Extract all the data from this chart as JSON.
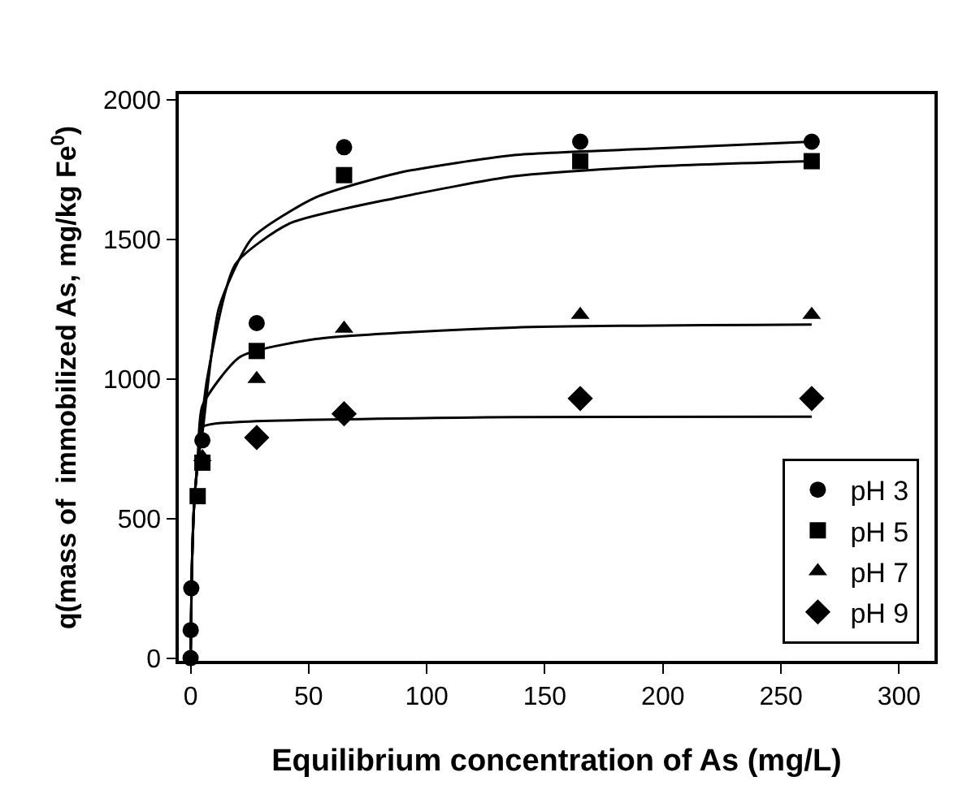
{
  "chart_data": {
    "type": "scatter",
    "xlabel": "Equilibrium concentration of As (mg/L)",
    "ylabel": "q(mass of  immobilized As, mg/kg Fe$^{0}$)",
    "xlim": [
      -5,
      315
    ],
    "ylim": [
      -10,
      2020
    ],
    "xticks": [
      0,
      50,
      100,
      150,
      200,
      250,
      300
    ],
    "yticks": [
      0,
      500,
      1000,
      1500,
      2000
    ],
    "grid": false,
    "legend": "bottom right",
    "series": [
      {
        "type": "line",
        "marker": "none",
        "line_style": "solid",
        "color": "#000000",
        "x": [
          0,
          0.5,
          1.5,
          3,
          5,
          12,
          26,
          53,
          88,
          137,
          196,
          263
        ],
        "values": [
          0,
          300,
          550,
          700,
          805,
          1254,
          1504,
          1650,
          1738,
          1802,
          1825,
          1850
        ]
      },
      {
        "type": "line",
        "marker": "none",
        "line_style": "solid",
        "color": "#000000",
        "x": [
          0,
          0.5,
          1.5,
          3,
          7,
          19,
          42,
          88,
          137,
          196,
          263
        ],
        "values": [
          0,
          300,
          550,
          700,
          1000,
          1411,
          1557,
          1650,
          1726,
          1761,
          1780
        ]
      },
      {
        "type": "line",
        "marker": "none",
        "line_style": "solid",
        "color": "#000000",
        "x": [
          0,
          0.5,
          1.5,
          3,
          5,
          21,
          53,
          137,
          263
        ],
        "values": [
          0,
          300,
          550,
          700,
          904,
          1079,
          1143,
          1184,
          1195
        ]
      },
      {
        "type": "line",
        "marker": "none",
        "line_style": "solid",
        "color": "#000000",
        "x": [
          0,
          0.5,
          1.5,
          3,
          5,
          19,
          137,
          263
        ],
        "values": [
          0,
          300,
          550,
          700,
          828,
          845,
          863,
          865
        ]
      },
      {
        "name": "pH 3",
        "marker": "circle",
        "color": "#000000",
        "x": [
          0,
          0.05,
          0.3,
          1,
          3,
          5,
          28,
          65,
          165,
          263
        ],
        "values": [
          0,
          100,
          250,
          null,
          null,
          780,
          1200,
          1830,
          1850,
          1850
        ]
      },
      {
        "name": "pH 5",
        "marker": "square",
        "color": "#000000",
        "x": [
          3,
          5,
          28,
          65,
          165,
          263
        ],
        "values": [
          580,
          700,
          1100,
          1730,
          1780,
          1780
        ]
      },
      {
        "name": "pH 7",
        "marker": "triangle",
        "color": "#000000",
        "x": [
          5,
          28,
          65,
          165,
          263
        ],
        "values": [
          720,
          1000,
          1180,
          1230,
          1230
        ]
      },
      {
        "name": "pH 9",
        "marker": "diamond",
        "color": "#000000",
        "x": [
          28,
          65,
          165,
          263
        ],
        "values": [
          790,
          875,
          930,
          930
        ]
      }
    ]
  }
}
